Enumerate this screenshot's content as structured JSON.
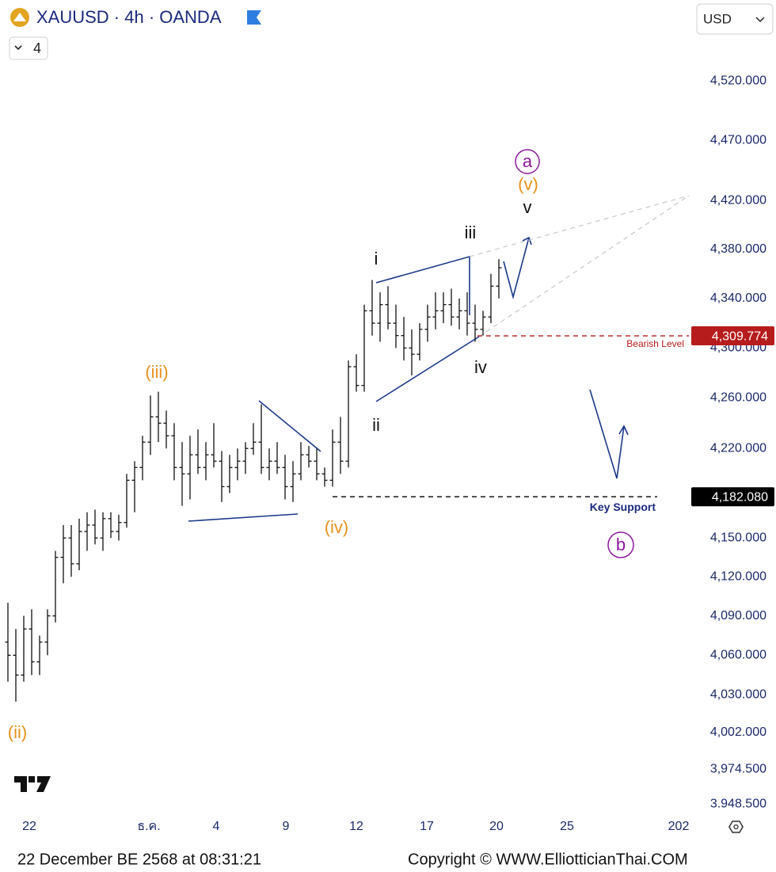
{
  "header": {
    "symbol": "XAUUSD · 4h · OANDA",
    "collapse_count": 4,
    "currency": "USD"
  },
  "footer": {
    "timestamp": "22 December BE 2568 at 08:31:21",
    "copyright": "Copyright © WWW.ElliotticianThai.COM"
  },
  "chart_data": {
    "type": "ohlc",
    "log_scale": true,
    "grid": false,
    "bar_color": "#111111",
    "xlim": [
      -1,
      173
    ],
    "ylim": [
      3940,
      4589
    ],
    "xticks": [
      {
        "value": 6.4,
        "label": "22"
      },
      {
        "value": 36.6,
        "label": "ธ.ค."
      },
      {
        "value": 53.6,
        "label": "4"
      },
      {
        "value": 71.2,
        "label": "9"
      },
      {
        "value": 89,
        "label": "12"
      },
      {
        "value": 106.8,
        "label": "17"
      },
      {
        "value": 124.4,
        "label": "20"
      },
      {
        "value": 142.2,
        "label": "25"
      },
      {
        "value": 170.4,
        "label": "202"
      }
    ],
    "yticks": [
      {
        "value": 4520,
        "label": "4,520.000"
      },
      {
        "value": 4470,
        "label": "4,470.000"
      },
      {
        "value": 4420,
        "label": "4,420.000"
      },
      {
        "value": 4380,
        "label": "4,380.000"
      },
      {
        "value": 4340,
        "label": "4,340.000"
      },
      {
        "value": 4300,
        "label": "4,300.000"
      },
      {
        "value": 4260,
        "label": "4,260.000"
      },
      {
        "value": 4220,
        "label": "4,220.000"
      },
      {
        "value": 4150,
        "label": "4,150.000"
      },
      {
        "value": 4120,
        "label": "4,120.000"
      },
      {
        "value": 4090,
        "label": "4,090.000"
      },
      {
        "value": 4060,
        "label": "4,060.000"
      },
      {
        "value": 4030,
        "label": "4,030.000"
      },
      {
        "value": 4002,
        "label": "4,002.000"
      },
      {
        "value": 3974.5,
        "label": "3,974.500"
      },
      {
        "value": 3948.5,
        "label": "3.948.500"
      }
    ],
    "x": [
      1,
      3,
      5,
      7,
      9,
      11,
      13,
      15,
      17,
      19,
      21,
      23,
      25,
      27,
      29,
      31,
      33,
      35,
      37,
      39,
      41,
      43,
      45,
      47,
      49,
      51,
      53,
      55,
      57,
      59,
      61,
      63,
      65,
      67,
      69,
      71,
      73,
      75,
      77,
      79,
      81,
      83,
      85,
      87,
      89,
      91,
      93,
      95,
      97,
      99,
      101,
      103,
      105,
      107,
      109,
      111,
      113,
      115,
      117,
      119,
      121,
      123,
      125
    ],
    "open": [
      4070,
      4060,
      4045,
      4080,
      4055,
      4070,
      4090,
      4135,
      4150,
      4130,
      4155,
      4160,
      4150,
      4165,
      4155,
      4162,
      4195,
      4205,
      4225,
      4245,
      4240,
      4230,
      4205,
      4200,
      4215,
      4205,
      4215,
      4210,
      4190,
      4205,
      4210,
      4220,
      4225,
      4205,
      4210,
      4205,
      4190,
      4200,
      4215,
      4210,
      4200,
      4195,
      4225,
      4210,
      4285,
      4270,
      4330,
      4320,
      4335,
      4320,
      4310,
      4300,
      4295,
      4315,
      4325,
      4330,
      4335,
      4325,
      4330,
      4320,
      4315,
      4325,
      4350
    ],
    "high": [
      4100,
      4080,
      4090,
      4095,
      4075,
      4095,
      4140,
      4160,
      4160,
      4165,
      4170,
      4172,
      4170,
      4170,
      4168,
      4200,
      4210,
      4230,
      4262,
      4265,
      4250,
      4240,
      4225,
      4230,
      4235,
      4225,
      4240,
      4218,
      4215,
      4220,
      4225,
      4240,
      4255,
      4220,
      4225,
      4215,
      4210,
      4225,
      4222,
      4220,
      4205,
      4235,
      4245,
      4290,
      4295,
      4335,
      4355,
      4345,
      4350,
      4335,
      4325,
      4315,
      4320,
      4335,
      4345,
      4345,
      4348,
      4340,
      4345,
      4335,
      4330,
      4360,
      4372
    ],
    "low": [
      4040,
      4025,
      4040,
      4045,
      4045,
      4060,
      4085,
      4115,
      4120,
      4125,
      4140,
      4145,
      4140,
      4150,
      4148,
      4158,
      4170,
      4195,
      4215,
      4225,
      4220,
      4195,
      4175,
      4180,
      4200,
      4195,
      4205,
      4178,
      4185,
      4195,
      4200,
      4215,
      4200,
      4195,
      4200,
      4180,
      4178,
      4195,
      4205,
      4195,
      4190,
      4190,
      4200,
      4205,
      4265,
      4265,
      4310,
      4305,
      4315,
      4300,
      4290,
      4278,
      4290,
      4305,
      4315,
      4320,
      4318,
      4315,
      4310,
      4305,
      4310,
      4320,
      4340
    ],
    "close": [
      4060,
      4045,
      4080,
      4055,
      4070,
      4090,
      4135,
      4150,
      4130,
      4155,
      4160,
      4150,
      4165,
      4155,
      4162,
      4195,
      4205,
      4225,
      4245,
      4240,
      4230,
      4205,
      4200,
      4215,
      4205,
      4215,
      4210,
      4190,
      4205,
      4210,
      4220,
      4225,
      4205,
      4210,
      4205,
      4190,
      4200,
      4215,
      4210,
      4200,
      4195,
      4225,
      4210,
      4285,
      4270,
      4330,
      4320,
      4335,
      4320,
      4310,
      4300,
      4295,
      4315,
      4325,
      4330,
      4335,
      4325,
      4330,
      4320,
      4315,
      4325,
      4350,
      4365
    ],
    "price_levels": [
      {
        "value": 4309.774,
        "label": "4,309.774",
        "name": "Bearish Level",
        "color": "#b71c1c"
      },
      {
        "value": 4182.08,
        "label": "4,182.080",
        "name": "Key Support",
        "color": "#000000"
      }
    ],
    "annotations": [
      "(ii)",
      "(iii)",
      "(iv)",
      "(v)",
      "i",
      "ii",
      "iii",
      "iv",
      "v",
      "a",
      "b"
    ]
  }
}
